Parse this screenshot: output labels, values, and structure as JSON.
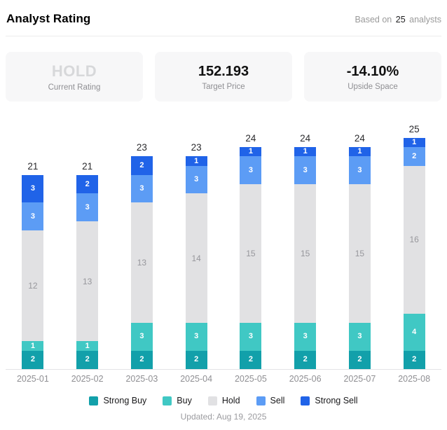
{
  "header": {
    "title": "Analyst Rating",
    "based_on_prefix": "Based on",
    "analyst_count": "25",
    "based_on_suffix": "analysts"
  },
  "stats": {
    "current_rating": {
      "value": "HOLD",
      "label": "Current Rating"
    },
    "target_price": {
      "value": "152.193",
      "label": "Target Price"
    },
    "upside_space": {
      "value": "-14.10%",
      "label": "Upside Space"
    }
  },
  "chart_data": {
    "type": "bar",
    "stacked": true,
    "categories": [
      "2025-01",
      "2025-02",
      "2025-03",
      "2025-04",
      "2025-05",
      "2025-06",
      "2025-07",
      "2025-08"
    ],
    "series": [
      {
        "name": "Strong Buy",
        "color": "#12A0AA",
        "label_color": "#ffffff",
        "values": [
          2,
          2,
          2,
          2,
          2,
          2,
          2,
          2
        ]
      },
      {
        "name": "Buy",
        "color": "#40C8C4",
        "label_color": "#ffffff",
        "values": [
          1,
          1,
          3,
          3,
          3,
          3,
          3,
          4
        ]
      },
      {
        "name": "Hold",
        "color": "#E1E1E3",
        "label_color": "#97979c",
        "values": [
          12,
          13,
          13,
          14,
          15,
          15,
          15,
          16
        ]
      },
      {
        "name": "Sell",
        "color": "#5C9CF5",
        "label_color": "#ffffff",
        "values": [
          3,
          3,
          3,
          3,
          3,
          3,
          3,
          2
        ]
      },
      {
        "name": "Strong Sell",
        "color": "#2063E8",
        "label_color": "#ffffff",
        "values": [
          3,
          2,
          2,
          1,
          1,
          1,
          1,
          1
        ]
      }
    ],
    "totals": [
      21,
      21,
      23,
      23,
      24,
      24,
      24,
      25
    ],
    "ylim": [
      0,
      25
    ],
    "grid": false,
    "legend_position": "bottom"
  },
  "footer": {
    "updated": "Updated: Aug 19, 2025"
  }
}
